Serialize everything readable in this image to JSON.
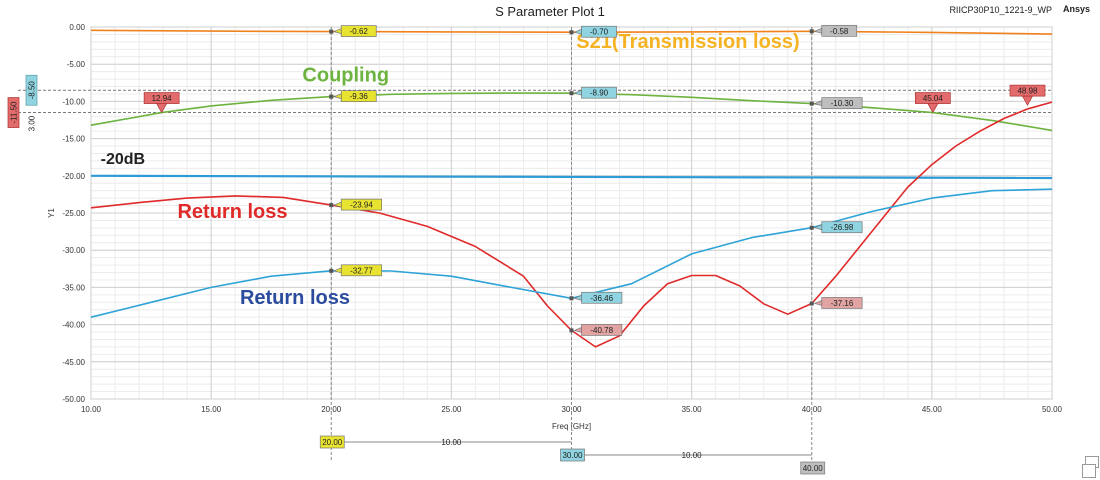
{
  "header": {
    "title": "S Parameter Plot 1",
    "file_name": "RIICP30P10_1221-9_WP",
    "brand": "Ansys"
  },
  "chart_data": {
    "type": "line",
    "title": "S Parameter Plot 1",
    "xlabel": "Freq [GHz]",
    "ylabel": "Y1",
    "xlim": [
      10,
      50
    ],
    "ylim": [
      -50,
      0
    ],
    "x_ticks": [
      "10.00",
      "15.00",
      "20.00",
      "25.00",
      "30.00",
      "35.00",
      "40.00",
      "45.00",
      "50.00"
    ],
    "y_ticks": [
      "0.00",
      "-5.00",
      "-10.00",
      "-15.00",
      "-20.00",
      "-25.00",
      "-30.00",
      "-35.00",
      "-40.00",
      "-45.00",
      "-50.00"
    ],
    "grid": true,
    "series": [
      {
        "key": "s21",
        "color": "#F0821E",
        "x": [
          10,
          15,
          20,
          25,
          30,
          35,
          40,
          45,
          50
        ],
        "y": [
          -0.45,
          -0.55,
          -0.62,
          -0.66,
          -0.7,
          -0.66,
          -0.58,
          -0.72,
          -0.95
        ]
      },
      {
        "key": "coupling",
        "color": "#6DB33F",
        "x": [
          10,
          12.94,
          15,
          17.5,
          20,
          22.5,
          25,
          27.5,
          30,
          32.5,
          35,
          37.5,
          40,
          42.5,
          45.04,
          47.5,
          50
        ],
        "y": [
          -13.2,
          -11.5,
          -10.6,
          -9.85,
          -9.36,
          -9.05,
          -8.92,
          -8.88,
          -8.9,
          -9.1,
          -9.45,
          -9.9,
          -10.3,
          -10.85,
          -11.5,
          -12.55,
          -13.9
        ]
      },
      {
        "key": "ref-20db",
        "color": "#2E9BD6",
        "x": [
          10,
          50
        ],
        "y": [
          -20.0,
          -20.3
        ]
      },
      {
        "key": "return-loss-red",
        "color": "#E02A2A",
        "x": [
          10,
          12,
          14,
          16,
          18,
          20,
          22,
          24,
          26,
          28,
          29,
          30,
          31,
          32,
          33,
          34,
          35,
          36,
          37,
          38,
          39,
          40,
          41,
          42,
          43,
          44,
          45,
          46,
          47,
          48,
          49,
          50
        ],
        "y": [
          -24.3,
          -23.6,
          -23.0,
          -22.7,
          -22.9,
          -23.94,
          -25.0,
          -26.8,
          -29.5,
          -33.5,
          -37.5,
          -40.78,
          -43.0,
          -41.5,
          -37.5,
          -34.5,
          -33.4,
          -33.4,
          -34.8,
          -37.2,
          -38.6,
          -37.16,
          -33.5,
          -29.5,
          -25.5,
          -21.5,
          -18.5,
          -16.0,
          -14.0,
          -12.3,
          -11.0,
          -10.1
        ]
      },
      {
        "key": "return-loss-blue",
        "color": "#2EA3D8",
        "x": [
          10,
          12.5,
          15,
          17.5,
          20,
          22.5,
          25,
          27.5,
          30,
          32.5,
          35,
          37.5,
          40,
          42.5,
          45,
          47.5,
          50
        ],
        "y": [
          -39.0,
          -37.0,
          -35.0,
          -33.5,
          -32.77,
          -32.8,
          -33.5,
          -35.0,
          -36.46,
          -34.5,
          -30.5,
          -28.3,
          -26.98,
          -24.8,
          -23.0,
          -22.0,
          -21.8
        ]
      }
    ],
    "markers": [
      {
        "x": 20,
        "y": -0.62,
        "label": "-0.62",
        "color": "#E8E230"
      },
      {
        "x": 30,
        "y": -0.7,
        "label": "-0.70",
        "color": "#8FD4E0"
      },
      {
        "x": 40,
        "y": -0.58,
        "label": "-0.58",
        "color": "#BEBEBE"
      },
      {
        "x": 20,
        "y": -9.36,
        "label": "-9.36",
        "color": "#E8E230"
      },
      {
        "x": 30,
        "y": -8.9,
        "label": "-8.90",
        "color": "#8FD4E0"
      },
      {
        "x": 40,
        "y": -10.3,
        "label": "-10.30",
        "color": "#BEBEBE"
      },
      {
        "x": 20,
        "y": -23.94,
        "label": "-23.94",
        "color": "#E8E230"
      },
      {
        "x": 20,
        "y": -32.77,
        "label": "-32.77",
        "color": "#E8E230"
      },
      {
        "x": 30,
        "y": -36.46,
        "label": "-36.46",
        "color": "#8FD4E0"
      },
      {
        "x": 30,
        "y": -40.78,
        "label": "-40.78",
        "color": "#E2A3A3"
      },
      {
        "x": 40,
        "y": -26.98,
        "label": "-26.98",
        "color": "#8FD4E0"
      },
      {
        "x": 40,
        "y": -37.16,
        "label": "-37.16",
        "color": "#E2A3A3"
      }
    ],
    "triangle_markers": [
      {
        "x": 12.94,
        "y": -11.5,
        "label": "12.94"
      },
      {
        "x": 45.04,
        "y": -11.5,
        "label": "45.04"
      },
      {
        "x": 48.98,
        "y": -10.5,
        "label": "48.98"
      }
    ],
    "h_ref_lines": [
      {
        "y": -8.5
      },
      {
        "y": -11.5
      }
    ],
    "y_side_markers": [
      {
        "y": -8.5,
        "label": "-8.50",
        "color": "#8FD4E0"
      },
      {
        "y": -11.5,
        "label": "-11.50",
        "color": "#E36B6B"
      },
      {
        "delta_label": "3.00"
      }
    ],
    "x_delta_markers": [
      {
        "x": 20,
        "label": "20.00",
        "color": "#E8E230",
        "row": 0
      },
      {
        "x": 30,
        "label": "30.00",
        "color": "#8FD4E0",
        "row": 1
      },
      {
        "x": 40,
        "label": "40.00",
        "color": "#BEBEBE",
        "row": 2
      }
    ],
    "x_delta_labels": [
      {
        "from": 20,
        "to": 30,
        "row": 0,
        "label": "10.00"
      },
      {
        "from": 30,
        "to": 40,
        "row": 1,
        "label": "10.00"
      }
    ],
    "annotations": [
      {
        "text": "S21(Transmission loss)",
        "x": 30.2,
        "y": -2.8,
        "color": "#F5B323",
        "size": 20
      },
      {
        "text": "Coupling",
        "x": 18.8,
        "y": -7.3,
        "color": "#6DB33F",
        "size": 20
      },
      {
        "text": "-20dB",
        "x": 10.4,
        "y": -18.4,
        "color": "#222222",
        "size": 16
      },
      {
        "text": "Return loss",
        "x": 13.6,
        "y": -25.7,
        "color": "#E02A2A",
        "size": 20
      },
      {
        "text": "Return loss",
        "x": 16.2,
        "y": -37.2,
        "color": "#2B4C9E",
        "size": 20
      }
    ]
  }
}
